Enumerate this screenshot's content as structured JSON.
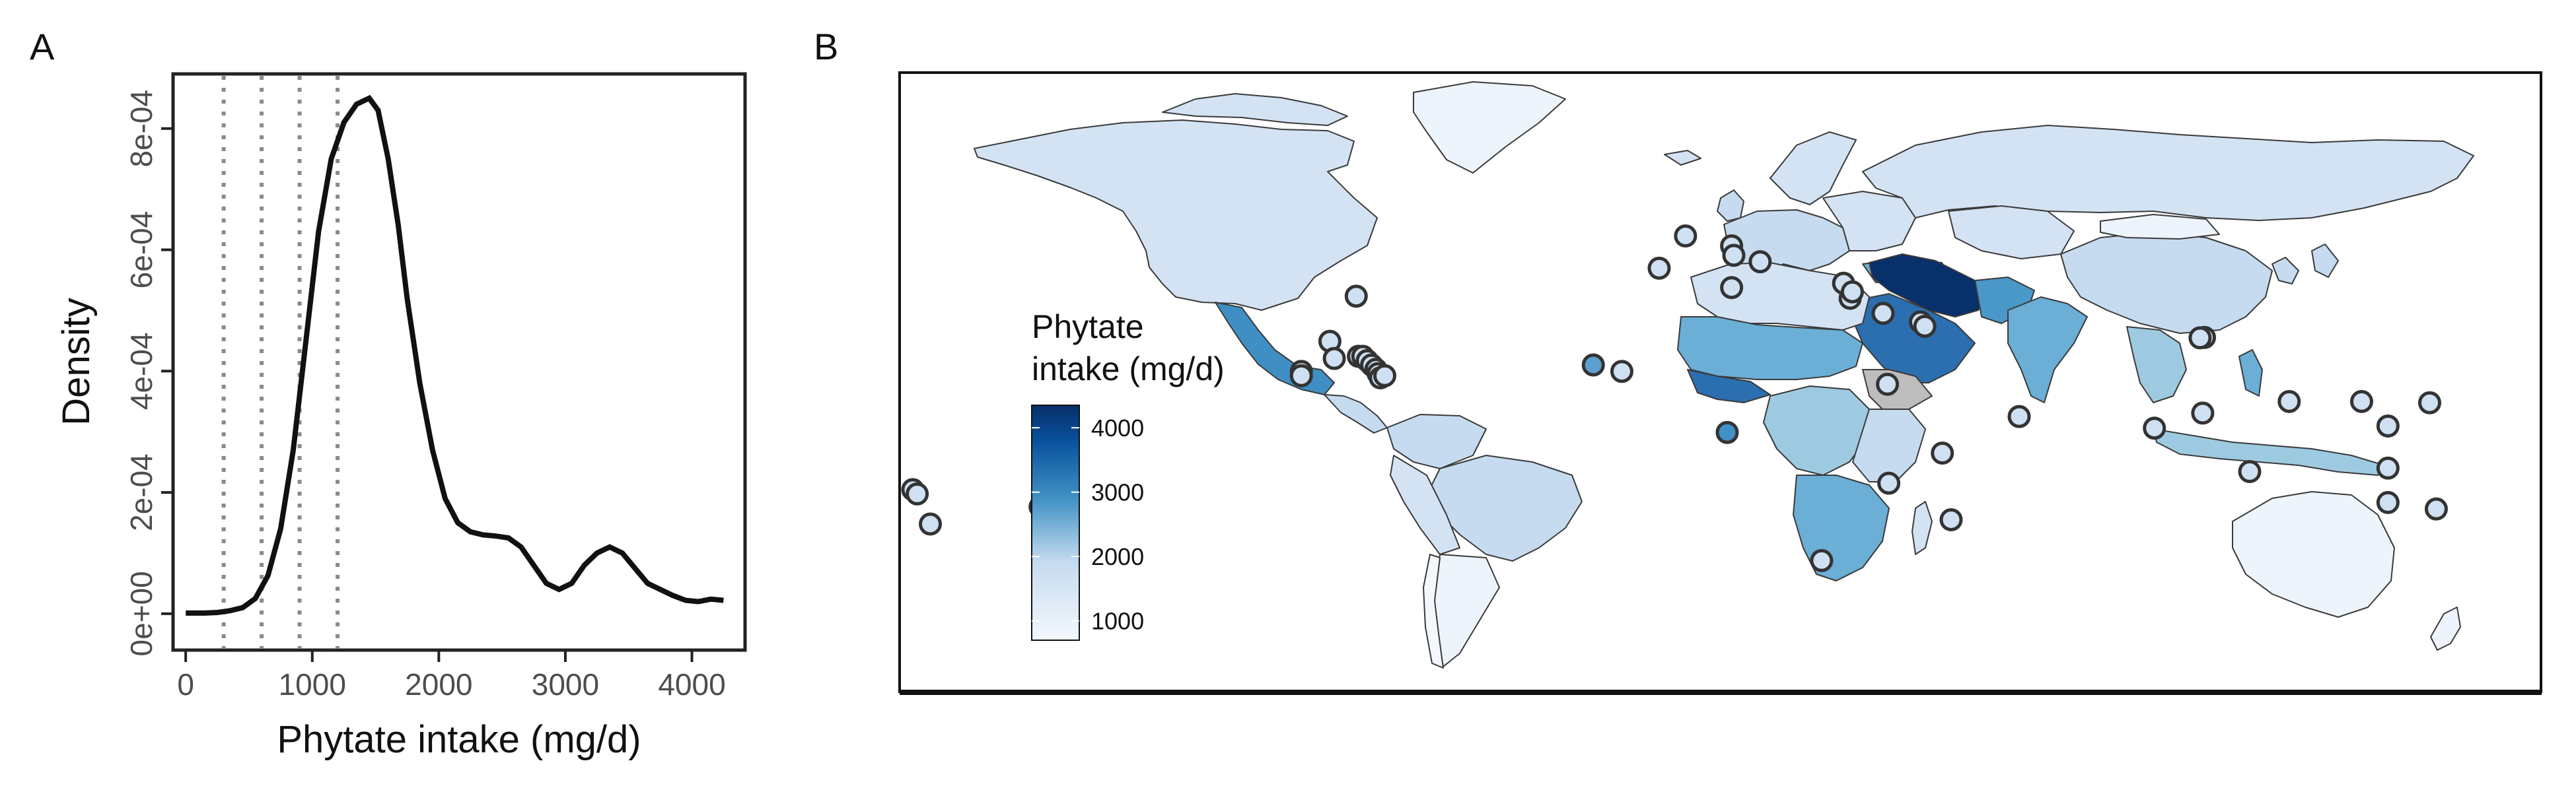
{
  "panels": {
    "a": {
      "label": "A"
    },
    "b": {
      "label": "B"
    }
  },
  "chart_data": [
    {
      "type": "line",
      "panel": "A",
      "xlabel": "Phytate intake (mg/d)",
      "ylabel": "Density",
      "x_ticks": [
        0,
        1000,
        2000,
        3000,
        4000
      ],
      "y_ticks": [
        0,
        0.0002,
        0.0004,
        0.0006,
        0.0008
      ],
      "y_tick_labels": [
        "0e+00",
        "2e-04",
        "4e-04",
        "6e-04",
        "8e-04"
      ],
      "xlim": [
        -100,
        4420
      ],
      "ylim": [
        -6e-05,
        0.00089
      ],
      "vlines": [
        300,
        600,
        900,
        1200
      ],
      "vline_style": "dotted gray",
      "series": [
        {
          "x": [
            0,
            150,
            250,
            350,
            450,
            550,
            650,
            750,
            850,
            950,
            1050,
            1150,
            1250,
            1350,
            1450,
            1520,
            1600,
            1680,
            1750,
            1850,
            1950,
            2050,
            2150,
            2250,
            2350,
            2450,
            2550,
            2650,
            2750,
            2850,
            2950,
            3050,
            3150,
            3250,
            3350,
            3450,
            3550,
            3650,
            3750,
            3850,
            3950,
            4050,
            4150,
            4250
          ],
          "y": [
            1e-06,
            1e-06,
            2e-06,
            5e-06,
            1e-05,
            2.5e-05,
            6.3e-05,
            0.00014,
            0.00027,
            0.00045,
            0.00063,
            0.00075,
            0.00081,
            0.00084,
            0.00085,
            0.00083,
            0.00075,
            0.00064,
            0.00052,
            0.00038,
            0.00027,
            0.00019,
            0.00015,
            0.000135,
            0.00013,
            0.000128,
            0.000125,
            0.00011,
            8e-05,
            5e-05,
            4e-05,
            5e-05,
            8e-05,
            0.0001,
            0.00011,
            0.0001,
            7.5e-05,
            5e-05,
            4e-05,
            3e-05,
            2.2e-05,
            2e-05,
            2.4e-05,
            2.2e-05
          ]
        }
      ]
    },
    {
      "type": "map",
      "panel": "B",
      "legend_title": [
        "Phytate",
        "intake (mg/d)"
      ],
      "legend_ticks": [
        4000,
        3000,
        2000,
        1000
      ],
      "legend_range": [
        700,
        4350
      ],
      "color_low": "#f4f8fd",
      "color_high": "#08306b",
      "points": [
        {
          "lon": -179,
          "lat": -13,
          "value": 1700
        },
        {
          "lon": -178,
          "lat": -14,
          "value": 1700
        },
        {
          "lon": -175,
          "lat": -21,
          "value": 1700
        },
        {
          "lon": -150,
          "lat": -17,
          "value": 1700
        },
        {
          "lon": -90.5,
          "lat": 14.5,
          "value": 1700
        },
        {
          "lon": -90.5,
          "lat": 13.5,
          "value": 1700
        },
        {
          "lon": -84,
          "lat": 21.5,
          "value": 1700
        },
        {
          "lon": -78,
          "lat": 32,
          "value": 1700
        },
        {
          "lon": -83,
          "lat": 17.5,
          "value": 1700
        },
        {
          "lon": -77.5,
          "lat": 18,
          "value": 1700
        },
        {
          "lon": -76.5,
          "lat": 18,
          "value": 1700
        },
        {
          "lon": -75.5,
          "lat": 17,
          "value": 1700
        },
        {
          "lon": -74.5,
          "lat": 16,
          "value": 1700
        },
        {
          "lon": -73.5,
          "lat": 15,
          "value": 1700
        },
        {
          "lon": -73,
          "lat": 14,
          "value": 1700
        },
        {
          "lon": -72.5,
          "lat": 13,
          "value": 1700
        },
        {
          "lon": -71.5,
          "lat": 13.5,
          "value": 1700
        },
        {
          "lon": -24,
          "lat": 16,
          "value": 2700
        },
        {
          "lon": -17.5,
          "lat": 14.5,
          "value": 1700
        },
        {
          "lon": -9,
          "lat": 38.5,
          "value": 1700
        },
        {
          "lon": -3,
          "lat": 46,
          "value": 1700
        },
        {
          "lon": 6.5,
          "lat": 0.3,
          "value": 2900
        },
        {
          "lon": 7.5,
          "lat": 43.7,
          "value": 1700
        },
        {
          "lon": 7.5,
          "lat": 34,
          "value": 1700
        },
        {
          "lon": 8,
          "lat": 41.5,
          "value": 1700
        },
        {
          "lon": 14,
          "lat": 40,
          "value": 1700
        },
        {
          "lon": 28,
          "lat": -29.5,
          "value": 1700
        },
        {
          "lon": 33,
          "lat": 35,
          "value": 1700
        },
        {
          "lon": 34.5,
          "lat": 31.5,
          "value": 1700
        },
        {
          "lon": 35,
          "lat": 33,
          "value": 1700
        },
        {
          "lon": 42,
          "lat": 28,
          "value": 1700
        },
        {
          "lon": 43,
          "lat": 11.5,
          "value": 1700
        },
        {
          "lon": 43.3,
          "lat": -11.5,
          "value": 1700
        },
        {
          "lon": 50.5,
          "lat": 26,
          "value": 1700
        },
        {
          "lon": 51.5,
          "lat": 25,
          "value": 1700
        },
        {
          "lon": 55.5,
          "lat": -4.5,
          "value": 1700
        },
        {
          "lon": 57.5,
          "lat": -20,
          "value": 1700
        },
        {
          "lon": 73,
          "lat": 4,
          "value": 1700
        },
        {
          "lon": 103.8,
          "lat": 1.3,
          "value": 1700
        },
        {
          "lon": 114.8,
          "lat": 4.8,
          "value": 1700
        },
        {
          "lon": 115.2,
          "lat": 22.4,
          "value": 1700
        },
        {
          "lon": 114.2,
          "lat": 22.3,
          "value": 1700
        },
        {
          "lon": 125.5,
          "lat": -8.8,
          "value": 1700
        },
        {
          "lon": 134.5,
          "lat": 7.5,
          "value": 1700
        },
        {
          "lon": 151,
          "lat": 7.5,
          "value": 1700
        },
        {
          "lon": 157,
          "lat": -8,
          "value": 1700
        },
        {
          "lon": 157,
          "lat": 1.8,
          "value": 1700
        },
        {
          "lon": 166.5,
          "lat": 7.2,
          "value": 1700
        },
        {
          "lon": 157,
          "lat": -16,
          "value": 1700
        },
        {
          "lon": 168,
          "lat": -17.5,
          "value": 1700
        }
      ]
    }
  ]
}
